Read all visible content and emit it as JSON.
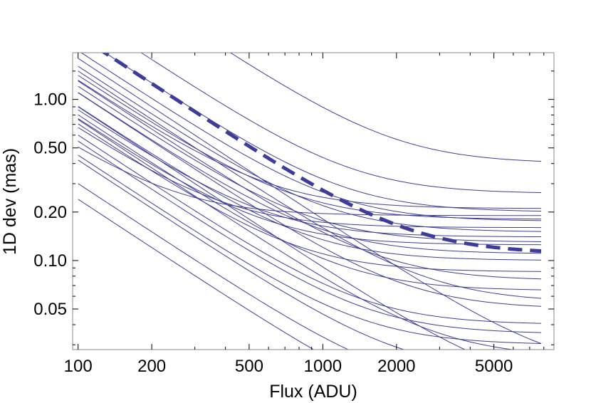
{
  "chart_data": {
    "type": "line",
    "xlabel": "Flux (ADU)",
    "ylabel": "1D dev (mas)",
    "x_scale": "log",
    "y_scale": "log",
    "xlim": [
      95,
      8800
    ],
    "ylim": [
      0.028,
      1.95
    ],
    "x_ticks": [
      100,
      200,
      500,
      1000,
      2000,
      5000
    ],
    "x_tick_labels": [
      "100",
      "200",
      "500",
      "1000",
      "2000",
      "5000"
    ],
    "y_ticks": [
      0.05,
      0.1,
      0.2,
      0.5,
      1.0
    ],
    "y_tick_labels": [
      "0.05",
      "0.10",
      "0.20",
      "0.50",
      "1.00"
    ],
    "grid": false,
    "legend": "none",
    "colors": {
      "series": "#3d3d99",
      "frame": "#888888",
      "text": "#000000"
    },
    "model": "y = sqrt(a^2 + (b * 100 / x)^2)",
    "series": [
      {
        "a": 0.4,
        "b": 8.0
      },
      {
        "a": 0.26,
        "b": 3.5
      },
      {
        "a": 0.2,
        "b": 2.5
      },
      {
        "a": 0.18,
        "b": 1.4
      },
      {
        "a": 0.175,
        "b": 2.0
      },
      {
        "a": 0.21,
        "b": 1.3
      },
      {
        "a": 0.15,
        "b": 1.6
      },
      {
        "a": 0.13,
        "b": 1.2
      },
      {
        "a": 0.14,
        "b": 0.85
      },
      {
        "a": 0.125,
        "b": 0.75
      },
      {
        "a": 0.11,
        "b": 1.1
      },
      {
        "a": 0.1,
        "b": 0.9
      },
      {
        "a": 0.075,
        "b": 1.3
      },
      {
        "a": 0.085,
        "b": 0.7
      },
      {
        "a": 0.065,
        "b": 0.8
      },
      {
        "a": 0.055,
        "b": 1.5
      },
      {
        "a": 0.04,
        "b": 0.6
      },
      {
        "a": 0.035,
        "b": 0.55
      },
      {
        "a": 0.03,
        "b": 0.45
      },
      {
        "a": 0.025,
        "b": 0.75
      },
      {
        "a": 0.02,
        "b": 0.42
      },
      {
        "a": 0.015,
        "b": 0.3
      },
      {
        "a": 0.01,
        "b": 0.24
      },
      {
        "a": 0.015,
        "b": 0.9
      },
      {
        "a": 0.02,
        "b": 1.8
      },
      {
        "a": 0.19,
        "b": 0.47
      },
      {
        "a": 0.16,
        "b": 0.65
      },
      {
        "a": 0.05,
        "b": 1.1
      }
    ],
    "mean_series": {
      "style": "dashed",
      "a": 0.11,
      "b": 2.5
    }
  }
}
